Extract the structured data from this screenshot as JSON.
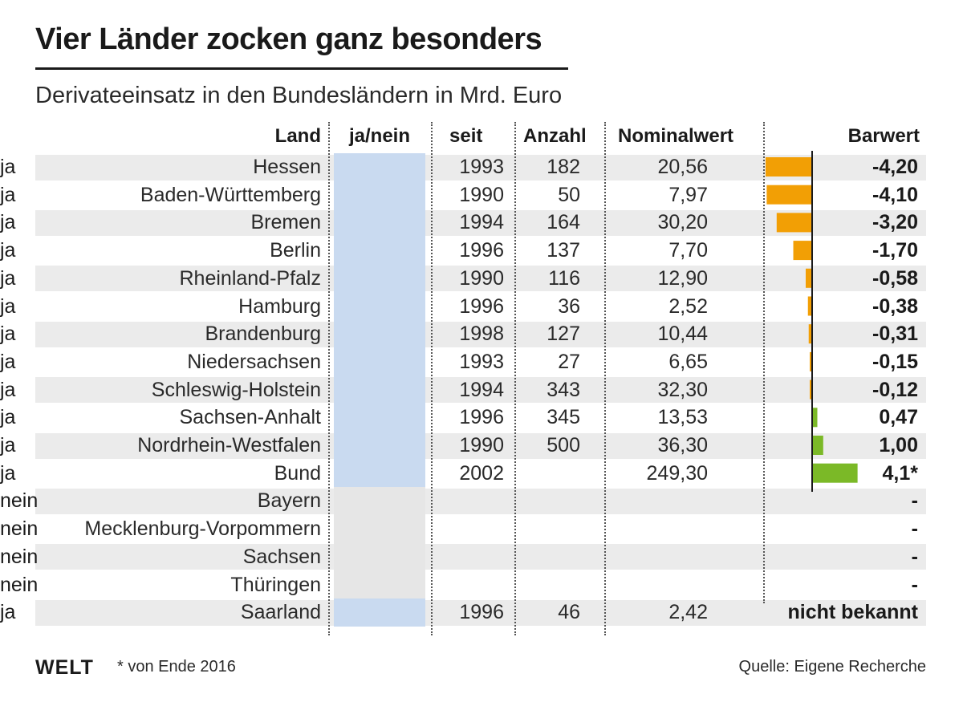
{
  "header": {
    "title": "Vier Länder zocken ganz besonders",
    "subtitle": "Derivateeinsatz in den Bundesländern in Mrd. Euro"
  },
  "columns": {
    "land": "Land",
    "janein": "ja/nein",
    "seit": "seit",
    "anzahl": "Anzahl",
    "nominal": "Nominalwert",
    "barwert": "Barwert"
  },
  "chart_data": {
    "type": "table",
    "title": "Vier Länder zocken ganz besonders",
    "subtitle": "Derivateeinsatz in den Bundesländern in Mrd. Euro",
    "bar_scale_max": 4.2,
    "colors": {
      "negative": "#f29f05",
      "positive": "#7bb927"
    },
    "rows": [
      {
        "land": "Hessen",
        "janein": "ja",
        "seit": "1993",
        "anzahl": "182",
        "nominal": "20,56",
        "barwert_label": "-4,20",
        "barwert": -4.2
      },
      {
        "land": "Baden-Württemberg",
        "janein": "ja",
        "seit": "1990",
        "anzahl": "50",
        "nominal": "7,97",
        "barwert_label": "-4,10",
        "barwert": -4.1
      },
      {
        "land": "Bremen",
        "janein": "ja",
        "seit": "1994",
        "anzahl": "164",
        "nominal": "30,20",
        "barwert_label": "-3,20",
        "barwert": -3.2
      },
      {
        "land": "Berlin",
        "janein": "ja",
        "seit": "1996",
        "anzahl": "137",
        "nominal": "7,70",
        "barwert_label": "-1,70",
        "barwert": -1.7
      },
      {
        "land": "Rheinland-Pfalz",
        "janein": "ja",
        "seit": "1990",
        "anzahl": "116",
        "nominal": "12,90",
        "barwert_label": "-0,58",
        "barwert": -0.58
      },
      {
        "land": "Hamburg",
        "janein": "ja",
        "seit": "1996",
        "anzahl": "36",
        "nominal": "2,52",
        "barwert_label": "-0,38",
        "barwert": -0.38
      },
      {
        "land": "Brandenburg",
        "janein": "ja",
        "seit": "1998",
        "anzahl": "127",
        "nominal": "10,44",
        "barwert_label": "-0,31",
        "barwert": -0.31
      },
      {
        "land": "Niedersachsen",
        "janein": "ja",
        "seit": "1993",
        "anzahl": "27",
        "nominal": "6,65",
        "barwert_label": "-0,15",
        "barwert": -0.15
      },
      {
        "land": "Schleswig-Holstein",
        "janein": "ja",
        "seit": "1994",
        "anzahl": "343",
        "nominal": "32,30",
        "barwert_label": "-0,12",
        "barwert": -0.12
      },
      {
        "land": "Sachsen-Anhalt",
        "janein": "ja",
        "seit": "1996",
        "anzahl": "345",
        "nominal": "13,53",
        "barwert_label": "0,47",
        "barwert": 0.47
      },
      {
        "land": "Nordrhein-Westfalen",
        "janein": "ja",
        "seit": "1990",
        "anzahl": "500",
        "nominal": "36,30",
        "barwert_label": "1,00",
        "barwert": 1.0
      },
      {
        "land": "Bund",
        "janein": "ja",
        "seit": "2002",
        "anzahl": "",
        "nominal": "249,30",
        "barwert_label": "4,1*",
        "barwert": 4.1
      },
      {
        "land": "Bayern",
        "janein": "nein",
        "seit": "",
        "anzahl": "",
        "nominal": "",
        "barwert_label": "-",
        "barwert": null
      },
      {
        "land": "Mecklenburg-Vorpommern",
        "janein": "nein",
        "seit": "",
        "anzahl": "",
        "nominal": "",
        "barwert_label": "-",
        "barwert": null
      },
      {
        "land": "Sachsen",
        "janein": "nein",
        "seit": "",
        "anzahl": "",
        "nominal": "",
        "barwert_label": "-",
        "barwert": null
      },
      {
        "land": "Thüringen",
        "janein": "nein",
        "seit": "",
        "anzahl": "",
        "nominal": "",
        "barwert_label": "-",
        "barwert": null
      },
      {
        "land": "Saarland",
        "janein": "ja",
        "seit": "1996",
        "anzahl": "46",
        "nominal": "2,42",
        "barwert_label": "nicht bekannt",
        "barwert": null
      }
    ]
  },
  "footer": {
    "logo": "WELT",
    "footnote": "* von Ende 2016",
    "source": "Quelle: Eigene Recherche"
  }
}
